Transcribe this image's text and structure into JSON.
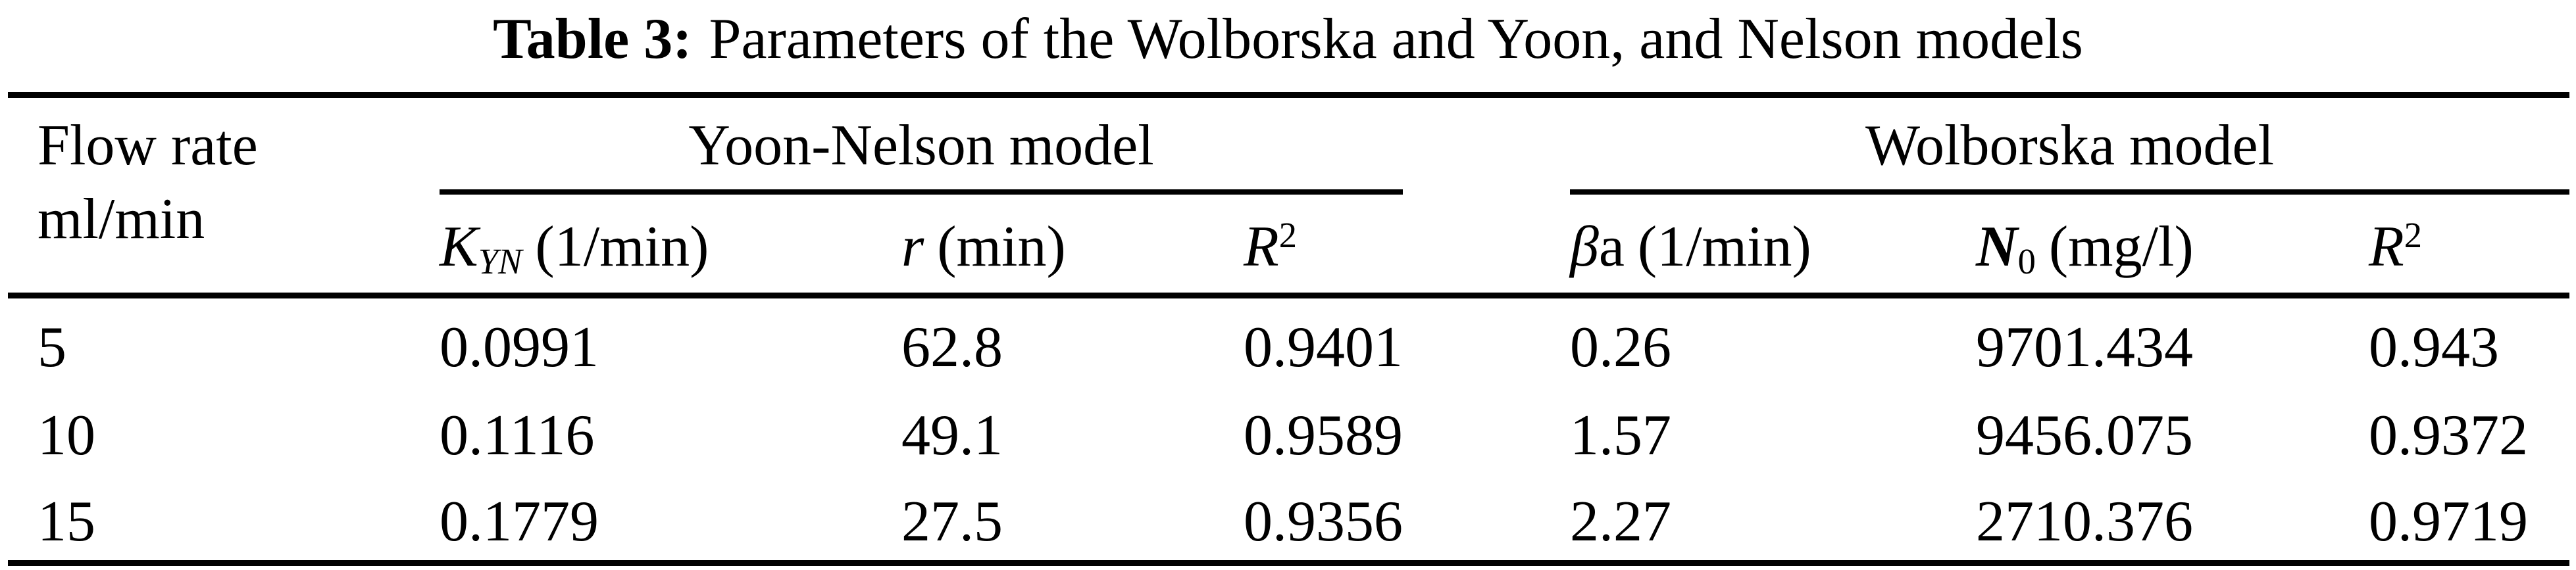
{
  "caption": {
    "label": "Table 3:",
    "text": "Parameters of the Wolborska and Yoon, and Nelson models"
  },
  "colors": {
    "text": "#000000",
    "background": "#ffffff",
    "rule": "#000000"
  },
  "table": {
    "row_header": {
      "line1": "Flow rate",
      "line2": "ml/min"
    },
    "groups": [
      {
        "name": "Yoon-Nelson model"
      },
      {
        "name": "Wolborska model"
      }
    ],
    "subheaders": {
      "kyn": {
        "symbol": "K",
        "subscript": "YN",
        "unit": "(1/min)"
      },
      "r": {
        "symbol": "r",
        "unit": "(min)"
      },
      "r2_yn": {
        "symbol": "R",
        "superscript": "2"
      },
      "beta": {
        "symbol": "β",
        "suffix": "a",
        "unit": "(1/min)"
      },
      "n0": {
        "symbol": "N",
        "subscript": "0",
        "unit": "(mg/l)"
      },
      "r2_w": {
        "symbol": "R",
        "superscript": "2"
      }
    },
    "rows": [
      {
        "flow_rate": "5",
        "kyn": "0.0991",
        "r": "62.8",
        "r2_yn": "0.9401",
        "beta": "0.26",
        "n0": "9701.434",
        "r2_w": "0.943"
      },
      {
        "flow_rate": "10",
        "kyn": "0.1116",
        "r": "49.1",
        "r2_yn": "0.9589",
        "beta": "1.57",
        "n0": "9456.075",
        "r2_w": "0.9372"
      },
      {
        "flow_rate": "15",
        "kyn": "0.1779",
        "r": "27.5",
        "r2_yn": "0.9356",
        "beta": "2.27",
        "n0": "2710.376",
        "r2_w": "0.9719"
      }
    ]
  }
}
